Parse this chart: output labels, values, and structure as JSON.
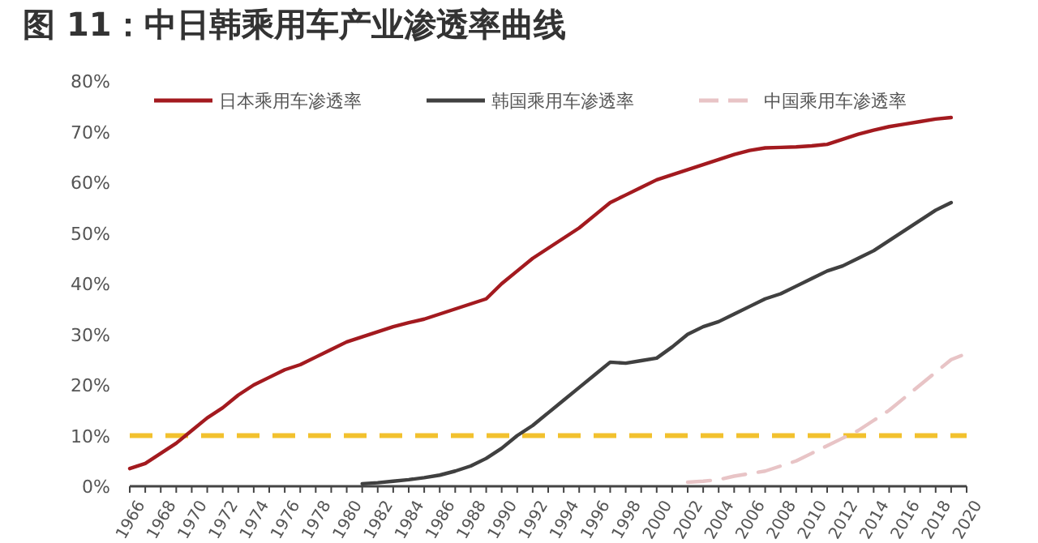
{
  "chart_data": {
    "type": "line",
    "title": "图 11：中日韩乘用车产业渗透率曲线",
    "series": [
      {
        "name": "日本乘用车渗透率",
        "color": "#a31a1f",
        "line_style": "solid",
        "x": [
          1966,
          1967,
          1968,
          1969,
          1970,
          1971,
          1972,
          1973,
          1974,
          1975,
          1976,
          1977,
          1978,
          1979,
          1980,
          1981,
          1982,
          1983,
          1984,
          1985,
          1986,
          1987,
          1988,
          1989,
          1990,
          1991,
          1992,
          1993,
          1994,
          1995,
          1996,
          1997,
          1998,
          1999,
          2000,
          2001,
          2002,
          2003,
          2004,
          2005,
          2006,
          2007,
          2008,
          2009,
          2010,
          2011,
          2012,
          2013,
          2014,
          2015,
          2016,
          2017,
          2018,
          2019
        ],
        "values": [
          3.5,
          4.5,
          6.5,
          8.5,
          11,
          13.5,
          15.5,
          18,
          20,
          21.5,
          23,
          24,
          25.5,
          27,
          28.5,
          29.5,
          30.5,
          31.5,
          32.3,
          33,
          34,
          35,
          36,
          37,
          40,
          42.5,
          45,
          47,
          49,
          51,
          53.5,
          56,
          57.5,
          59,
          60.5,
          61.5,
          62.5,
          63.5,
          64.5,
          65.5,
          66.3,
          66.8,
          66.9,
          67,
          67.2,
          67.5,
          68.5,
          69.5,
          70.3,
          71,
          71.5,
          72,
          72.5,
          72.8
        ]
      },
      {
        "name": "韩国乘用车渗透率",
        "color": "#404040",
        "line_style": "solid",
        "x": [
          1981,
          1982,
          1983,
          1984,
          1985,
          1986,
          1987,
          1988,
          1989,
          1990,
          1991,
          1992,
          1993,
          1994,
          1995,
          1996,
          1997,
          1998,
          1999,
          2000,
          2001,
          2002,
          2003,
          2004,
          2005,
          2006,
          2007,
          2008,
          2009,
          2010,
          2011,
          2012,
          2013,
          2014,
          2015,
          2016,
          2017,
          2018,
          2019
        ],
        "values": [
          0.5,
          0.7,
          1,
          1.3,
          1.7,
          2.2,
          3,
          4,
          5.5,
          7.5,
          10,
          12,
          14.5,
          17,
          19.5,
          22,
          24.5,
          24.3,
          24.8,
          25.3,
          27.5,
          30,
          31.5,
          32.5,
          34,
          35.5,
          37,
          38,
          39.5,
          41,
          42.5,
          43.5,
          45,
          46.5,
          48.5,
          50.5,
          52.5,
          54.5,
          56
        ]
      },
      {
        "name": "中国乘用车渗透率",
        "color": "#e8c4c6",
        "line_style": "dashed",
        "x": [
          2002,
          2003,
          2004,
          2005,
          2006,
          2007,
          2008,
          2009,
          2010,
          2011,
          2012,
          2013,
          2014,
          2015,
          2016,
          2017,
          2018,
          2019,
          2020
        ],
        "values": [
          0.8,
          1,
          1.3,
          2,
          2.5,
          3,
          4,
          5,
          6.5,
          8,
          9.5,
          11,
          13,
          15,
          17.5,
          20,
          22.5,
          25,
          26.2
        ]
      }
    ],
    "ref_lines": [
      {
        "axis": "y",
        "value": 10,
        "color": "#f2c12e",
        "line_style": "dashed"
      }
    ],
    "xlim": [
      1966,
      2020
    ],
    "xticks": [
      1966,
      {
        "value": 1967,
        "label": null
      },
      1968,
      {
        "value": 1969,
        "label": null
      },
      1970,
      {
        "value": 1971,
        "label": null
      },
      1972,
      {
        "value": 1973,
        "label": null
      },
      1974,
      {
        "value": 1975,
        "label": null
      },
      1976,
      {
        "value": 1977,
        "label": null
      },
      1978,
      {
        "value": 1979,
        "label": null
      },
      1980,
      {
        "value": 1981,
        "label": null
      },
      1982,
      {
        "value": 1983,
        "label": null
      },
      1984,
      {
        "value": 1985,
        "label": null
      },
      1986,
      {
        "value": 1987,
        "label": null
      },
      1988,
      {
        "value": 1989,
        "label": null
      },
      1990,
      {
        "value": 1991,
        "label": null
      },
      1992,
      {
        "value": 1993,
        "label": null
      },
      1994,
      {
        "value": 1995,
        "label": null
      },
      1996,
      {
        "value": 1997,
        "label": null
      },
      1998,
      {
        "value": 1999,
        "label": null
      },
      2000,
      {
        "value": 2001,
        "label": null
      },
      2002,
      {
        "value": 2003,
        "label": null
      },
      2004,
      {
        "value": 2005,
        "label": null
      },
      2006,
      {
        "value": 2007,
        "label": null
      },
      2008,
      {
        "value": 2009,
        "label": null
      },
      2010,
      {
        "value": 2011,
        "label": null
      },
      2012,
      {
        "value": 2013,
        "label": null
      },
      2014,
      {
        "value": 2015,
        "label": null
      },
      2016,
      {
        "value": 2017,
        "label": null
      },
      2018,
      {
        "value": 2019,
        "label": null
      },
      2020
    ],
    "ylim": [
      0,
      80
    ],
    "yticks": [
      {
        "value": 0,
        "label": "0%"
      },
      {
        "value": 10,
        "label": "10%"
      },
      {
        "value": 20,
        "label": "20%"
      },
      {
        "value": 30,
        "label": "30%"
      },
      {
        "value": 40,
        "label": "40%"
      },
      {
        "value": 50,
        "label": "50%"
      },
      {
        "value": 60,
        "label": "60%"
      },
      {
        "value": 70,
        "label": "70%"
      },
      {
        "value": 80,
        "label": "80%"
      }
    ],
    "grid": false,
    "legend": "top",
    "marker": "none"
  }
}
